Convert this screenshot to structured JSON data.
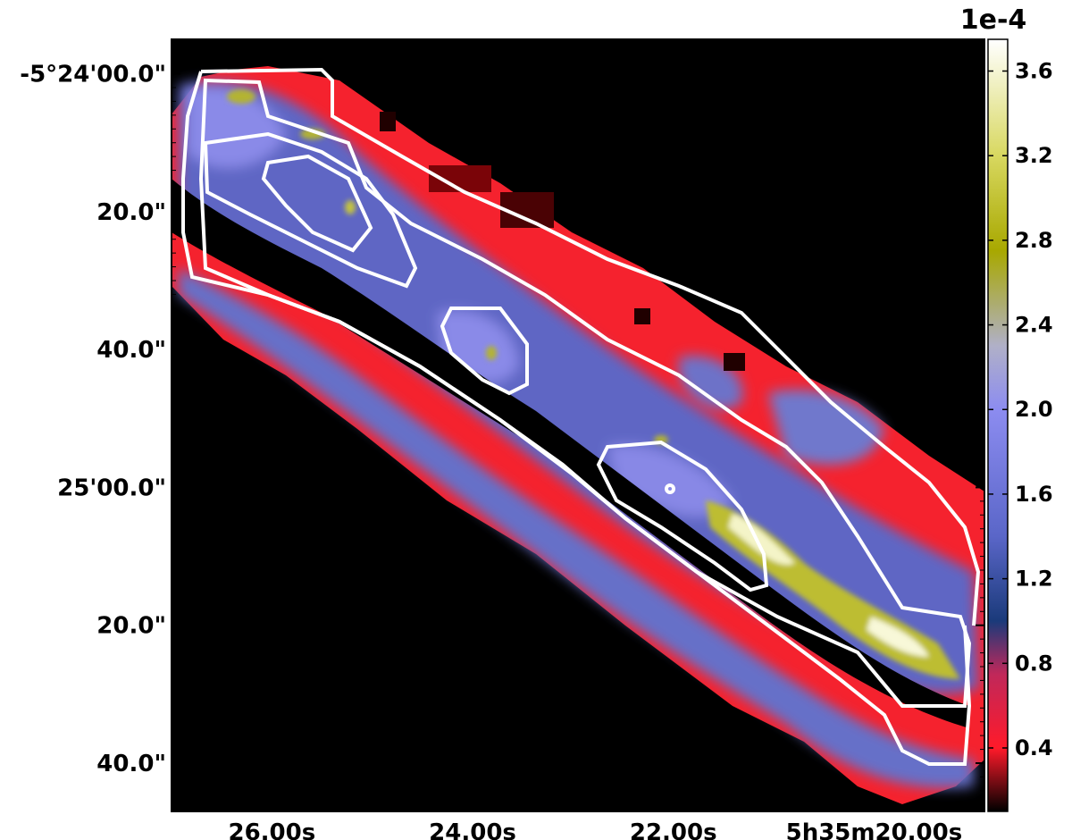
{
  "chart_data": {
    "type": "heatmap",
    "title": "",
    "xlabel": "",
    "ylabel": "",
    "x_axis": {
      "quantity": "Right Ascension (J2000)",
      "tick_labels": [
        "26.00s",
        "24.00s",
        "22.00s",
        "5h35m20.00s"
      ],
      "tick_values_s": [
        26.0,
        24.0,
        22.0,
        20.0
      ],
      "range_s": [
        27.0,
        18.9
      ]
    },
    "y_axis": {
      "quantity": "Declination (J2000)",
      "tick_labels": [
        "-5°24'00.0\"",
        "20.0\"",
        "40.0\"",
        "25'00.0\"",
        "20.0\"",
        "40.0\""
      ],
      "tick_values_arcsec": [
        0,
        20,
        40,
        60,
        80,
        100
      ],
      "range_arcsec": [
        -5,
        107
      ]
    },
    "colorbar": {
      "multiplier_label": "1e-4",
      "tick_labels": [
        "0.4",
        "0.8",
        "1.2",
        "1.6",
        "2.0",
        "2.4",
        "2.8",
        "3.2",
        "3.6"
      ],
      "tick_values": [
        0.4,
        0.8,
        1.2,
        1.6,
        2.0,
        2.4,
        2.8,
        3.2,
        3.6
      ],
      "range": [
        0.1,
        3.75
      ],
      "colormap_stops": [
        {
          "value": 0.1,
          "color": "#000000"
        },
        {
          "value": 0.4,
          "color": "#ff1a2a"
        },
        {
          "value": 0.75,
          "color": "#c0285a"
        },
        {
          "value": 1.0,
          "color": "#1a3a7a"
        },
        {
          "value": 1.4,
          "color": "#5a66c8"
        },
        {
          "value": 2.0,
          "color": "#8c8cf0"
        },
        {
          "value": 2.3,
          "color": "#b0b0c8"
        },
        {
          "value": 2.75,
          "color": "#a8a800"
        },
        {
          "value": 3.2,
          "color": "#d8d860"
        },
        {
          "value": 3.75,
          "color": "#ffffff"
        }
      ]
    },
    "grid": false,
    "legend": "none",
    "description_features": {
      "map": "diagonal strip of emission from upper-left to lower-right",
      "contour_color": "#ffffff",
      "contour_count": 6
    }
  }
}
